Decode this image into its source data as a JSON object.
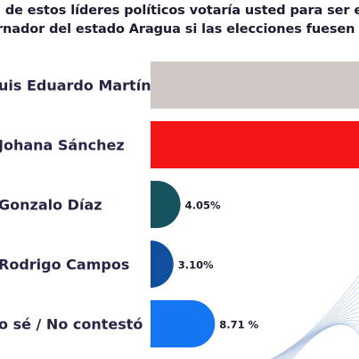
{
  "chart_data": {
    "type": "bar",
    "orientation": "horizontal",
    "title": "l de estos líderes políticos votaría usted para ser ele rnador del estado Aragua si las elecciones fuesen m",
    "title_lines": [
      "l de estos líderes políticos votaría usted para ser ele",
      "rnador del estado Aragua si las elecciones fuesen m"
    ],
    "categories": [
      "uis Eduardo Martínez",
      "Johana Sánchez",
      "Gonzalo Díaz",
      "Rodrigo Campos",
      "o sé / No contestó"
    ],
    "values": [
      null,
      null,
      4.05,
      3.1,
      8.71
    ],
    "value_labels": [
      "",
      "",
      "4.05%",
      "3.10%",
      "8.71 %"
    ],
    "colors": [
      "#cfc8c4",
      "#f41616",
      "#17535f",
      "#0f4f9e",
      "#1476f0"
    ],
    "unit": "%",
    "grid": false,
    "legend": "none"
  }
}
